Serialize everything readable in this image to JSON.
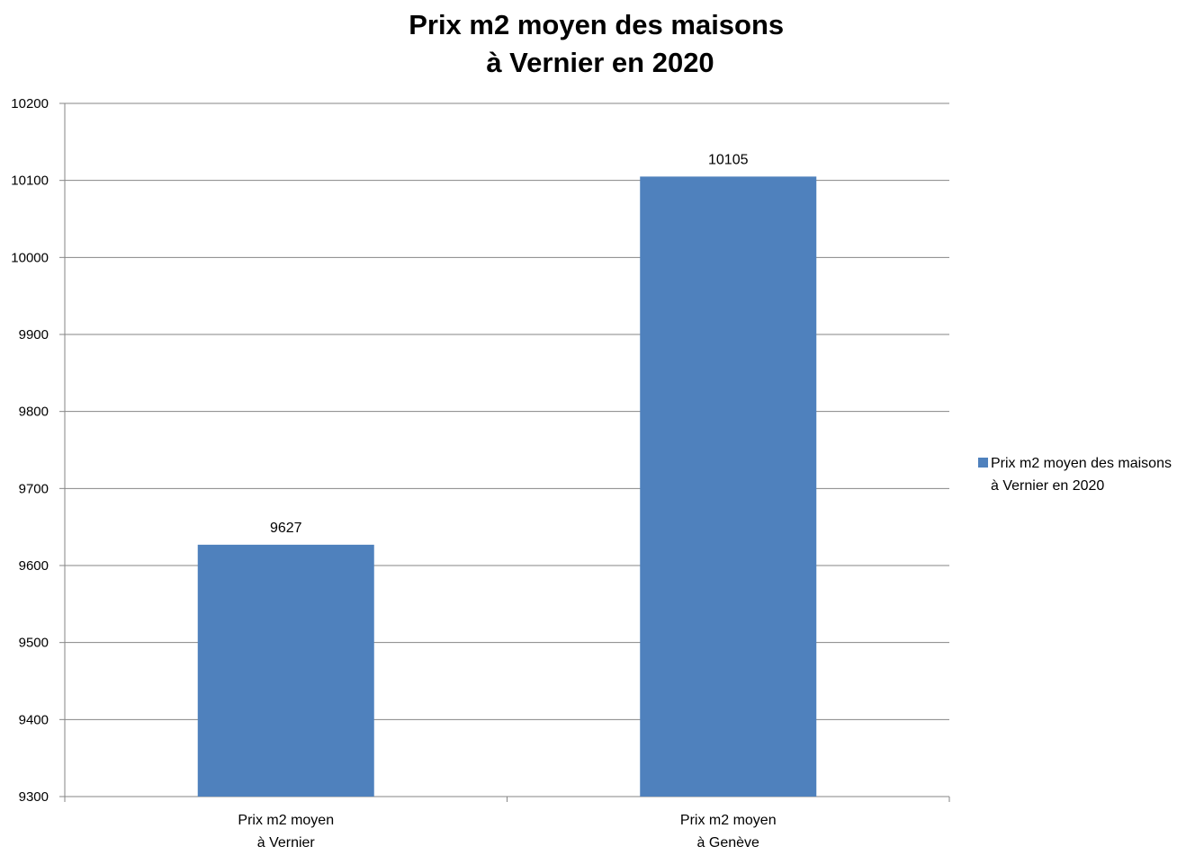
{
  "chart_data": {
    "type": "bar",
    "title": [
      "Prix m2 moyen des maisons",
      "à Vernier en 2020"
    ],
    "categories": [
      [
        "Prix m2 moyen",
        "à Vernier"
      ],
      [
        "Prix m2 moyen",
        "à Genève"
      ]
    ],
    "series": [
      {
        "name": [
          "Prix m2 moyen des maisons",
          "à Vernier en 2020"
        ],
        "values": [
          9627,
          10105
        ],
        "color": "#4f81bd"
      }
    ],
    "data_labels": [
      "9627",
      "10105"
    ],
    "yticks": [
      "9300",
      "9400",
      "9500",
      "9600",
      "9700",
      "9800",
      "9900",
      "10000",
      "10100",
      "10200"
    ],
    "ylim": [
      9300,
      10200
    ],
    "grid": true,
    "legend_position": "right",
    "gridline_color": "#868686",
    "axis_color": "#868686"
  }
}
